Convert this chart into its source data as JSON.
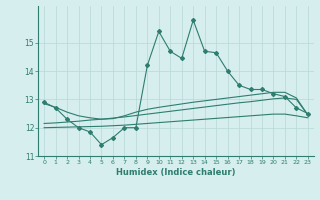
{
  "xlabel": "Humidex (Indice chaleur)",
  "x_values": [
    0,
    1,
    2,
    3,
    4,
    5,
    6,
    7,
    8,
    9,
    10,
    11,
    12,
    13,
    14,
    15,
    16,
    17,
    18,
    19,
    20,
    21,
    22,
    23
  ],
  "line1_y": [
    12.9,
    12.7,
    12.3,
    12.0,
    11.85,
    11.4,
    11.65,
    12.0,
    12.0,
    14.2,
    15.4,
    14.7,
    14.45,
    15.8,
    14.7,
    14.65,
    14.0,
    13.5,
    13.35,
    13.35,
    13.2,
    13.1,
    12.7,
    12.5
  ],
  "line2_y": [
    12.85,
    12.72,
    12.55,
    12.42,
    12.35,
    12.3,
    12.32,
    12.42,
    12.55,
    12.65,
    12.72,
    12.78,
    12.84,
    12.9,
    12.95,
    13.0,
    13.05,
    13.1,
    13.15,
    13.2,
    13.25,
    13.25,
    13.05,
    12.45
  ],
  "line3_y": [
    12.15,
    12.17,
    12.2,
    12.23,
    12.27,
    12.3,
    12.34,
    12.38,
    12.43,
    12.48,
    12.53,
    12.58,
    12.63,
    12.68,
    12.73,
    12.78,
    12.83,
    12.88,
    12.92,
    12.97,
    13.02,
    13.05,
    13.0,
    12.45
  ],
  "line4_y": [
    12.0,
    12.01,
    12.02,
    12.03,
    12.04,
    12.05,
    12.07,
    12.09,
    12.12,
    12.15,
    12.18,
    12.21,
    12.24,
    12.27,
    12.3,
    12.33,
    12.36,
    12.39,
    12.42,
    12.45,
    12.48,
    12.48,
    12.42,
    12.35
  ],
  "color": "#2e7d6e",
  "bg_color": "#d6eeee",
  "grid_color": "#b8d8d8",
  "ylim": [
    11.0,
    16.3
  ],
  "yticks": [
    11,
    12,
    13,
    14,
    15
  ],
  "xticks": [
    0,
    1,
    2,
    3,
    4,
    5,
    6,
    7,
    8,
    9,
    10,
    11,
    12,
    13,
    14,
    15,
    16,
    17,
    18,
    19,
    20,
    21,
    22,
    23
  ]
}
